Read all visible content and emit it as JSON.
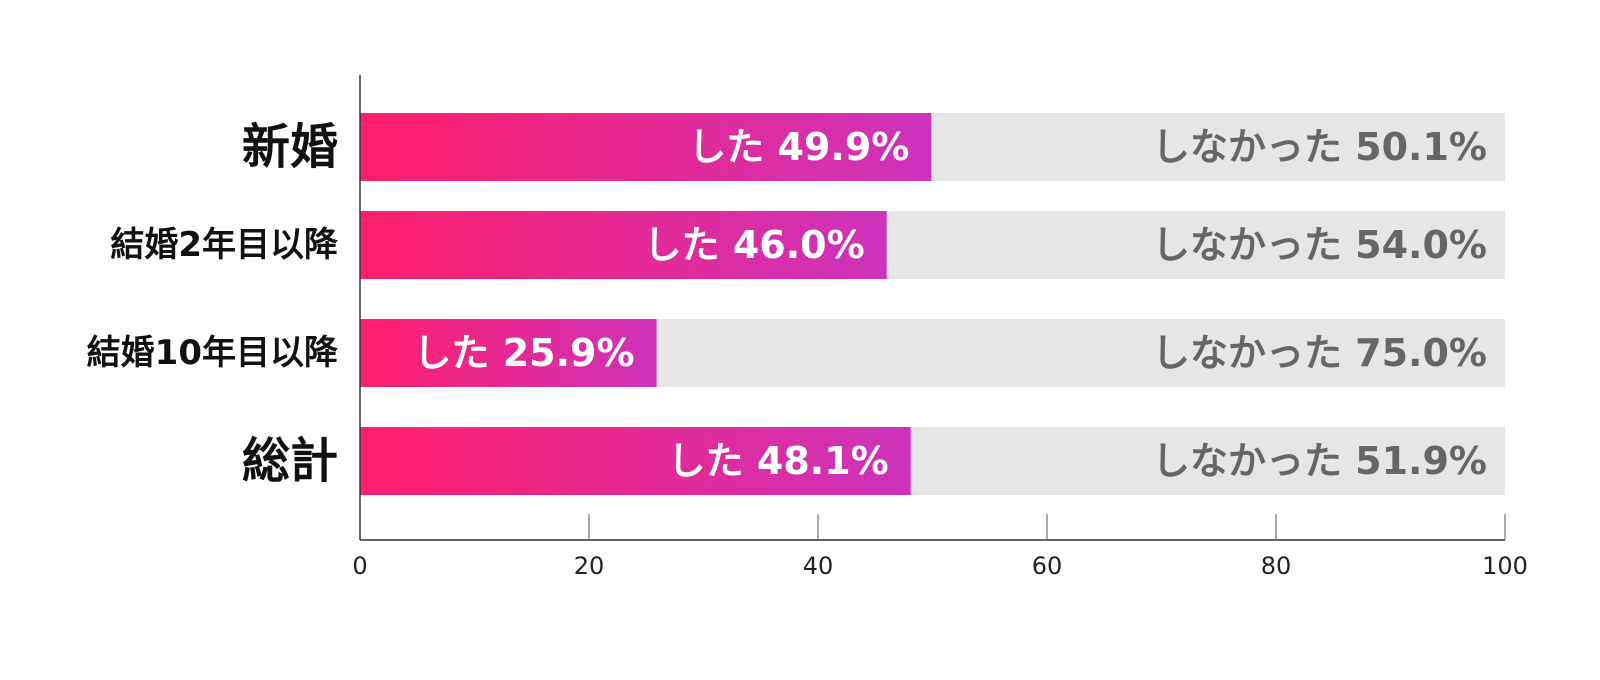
{
  "chart_data": {
    "type": "bar",
    "orientation": "horizontal",
    "stacked": true,
    "categories": [
      "新婚",
      "結婚2年目以降",
      "結婚10年目以降",
      "総計"
    ],
    "series": [
      {
        "values": [
          49.9,
          46.0,
          25.9,
          48.1
        ],
        "label_prefix": "した"
      },
      {
        "values": [
          50.1,
          54.0,
          75.0,
          51.9
        ],
        "label_prefix": "しなかった"
      }
    ],
    "xlim": [
      0,
      100
    ],
    "xticks": [
      0,
      20,
      40,
      60,
      80,
      100
    ],
    "grid": false,
    "legend": "none",
    "colors": {
      "did_start": "#ff1f6b",
      "did_end": "#cc33bb",
      "did_not": "#e6e6e6",
      "did_text": "#ffffff",
      "did_not_text": "#666666"
    }
  }
}
